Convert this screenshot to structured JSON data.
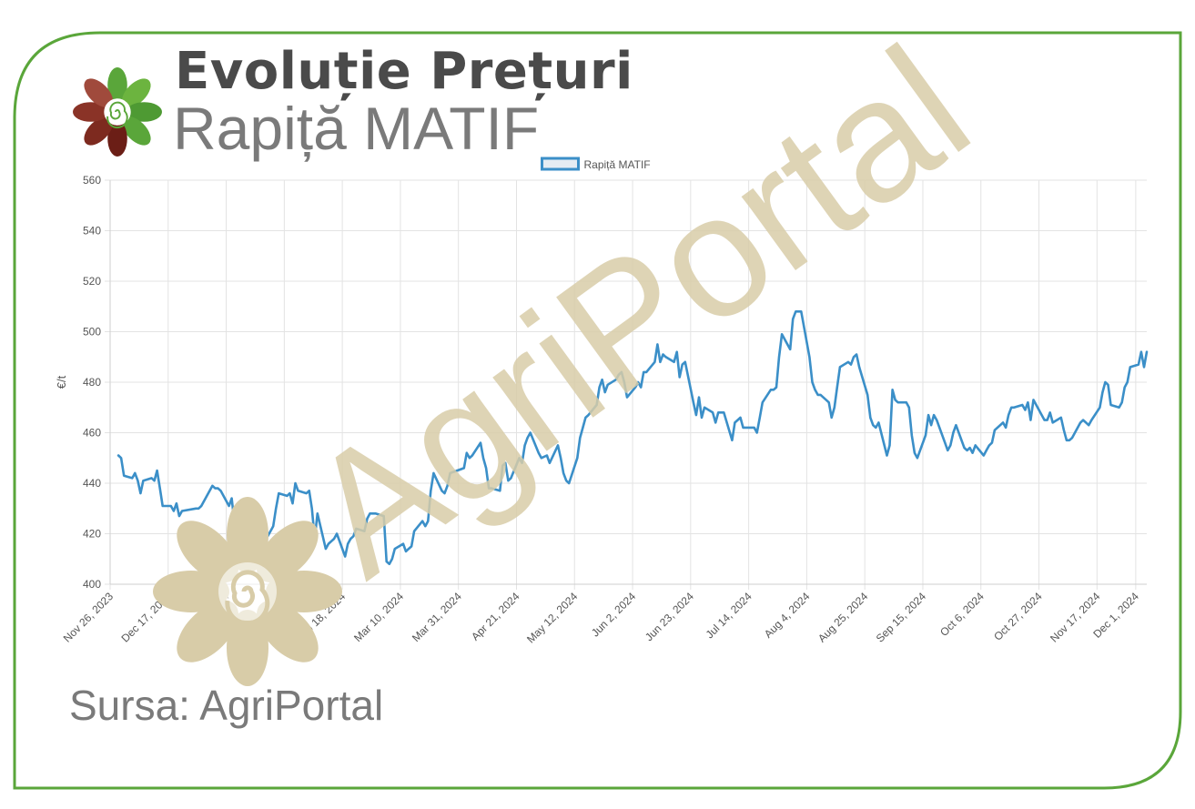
{
  "header": {
    "title_line1": "Evoluție Prețuri",
    "title_line2": "Rapiță MATIF"
  },
  "footer": {
    "source": "Sursa: AgriPortal"
  },
  "watermark": {
    "text": "AgriPortal",
    "color": "#d8cca8"
  },
  "colors": {
    "frame": "#5aa63a",
    "line": "#3b8fc8",
    "logo_green": "#5aa63a",
    "logo_red": "#8a3327"
  },
  "chart_data": {
    "type": "line",
    "legend": "Rapiță MATIF",
    "legend_position": "top-center",
    "ylabel": "€/t",
    "ylim": [
      400,
      560
    ],
    "yticks": [
      400,
      420,
      440,
      460,
      480,
      500,
      520,
      540,
      560
    ],
    "xlim": [
      "2023-11-26",
      "2024-12-05"
    ],
    "xticks": [
      "Nov 26, 2023",
      "Dec 17, 2023",
      "Jan 7, 2024",
      "Jan 28, 2024",
      "Feb 18, 2024",
      "Mar 10, 2024",
      "Mar 31, 2024",
      "Apr 21, 2024",
      "May 12, 2024",
      "Jun 2, 2024",
      "Jun 23, 2024",
      "Jul 14, 2024",
      "Aug 4, 2024",
      "Aug 25, 2024",
      "Sep 15, 2024",
      "Oct 6, 2024",
      "Oct 27, 2024",
      "Nov 17, 2024",
      "Dec 1, 2024"
    ],
    "grid": true,
    "series": [
      {
        "name": "Rapiță MATIF",
        "color": "#3b8fc8",
        "points": [
          [
            "2023-11-29",
            451
          ],
          [
            "2023-11-30",
            450
          ],
          [
            "2023-12-01",
            443
          ],
          [
            "2023-12-04",
            442
          ],
          [
            "2023-12-05",
            444
          ],
          [
            "2023-12-06",
            441
          ],
          [
            "2023-12-07",
            436
          ],
          [
            "2023-12-08",
            441
          ],
          [
            "2023-12-11",
            442
          ],
          [
            "2023-12-12",
            441
          ],
          [
            "2023-12-13",
            445
          ],
          [
            "2023-12-14",
            438
          ],
          [
            "2023-12-15",
            431
          ],
          [
            "2023-12-18",
            431
          ],
          [
            "2023-12-19",
            429
          ],
          [
            "2023-12-20",
            432
          ],
          [
            "2023-12-21",
            427
          ],
          [
            "2023-12-22",
            429
          ],
          [
            "2023-12-27",
            430
          ],
          [
            "2023-12-28",
            430
          ],
          [
            "2023-12-29",
            431
          ],
          [
            "2024-01-02",
            439
          ],
          [
            "2024-01-03",
            438
          ],
          [
            "2024-01-04",
            438
          ],
          [
            "2024-01-05",
            437
          ],
          [
            "2024-01-08",
            431
          ],
          [
            "2024-01-09",
            434
          ],
          [
            "2024-01-10",
            424
          ],
          [
            "2024-01-11",
            427
          ],
          [
            "2024-01-12",
            423
          ],
          [
            "2024-01-15",
            419
          ],
          [
            "2024-01-16",
            423
          ],
          [
            "2024-01-17",
            426
          ],
          [
            "2024-01-18",
            425
          ],
          [
            "2024-01-19",
            420
          ],
          [
            "2024-01-22",
            419
          ],
          [
            "2024-01-23",
            421
          ],
          [
            "2024-01-24",
            423
          ],
          [
            "2024-01-25",
            430
          ],
          [
            "2024-01-26",
            436
          ],
          [
            "2024-01-29",
            435
          ],
          [
            "2024-01-30",
            436
          ],
          [
            "2024-01-31",
            432
          ],
          [
            "2024-02-01",
            440
          ],
          [
            "2024-02-02",
            437
          ],
          [
            "2024-02-05",
            436
          ],
          [
            "2024-02-06",
            437
          ],
          [
            "2024-02-07",
            430
          ],
          [
            "2024-02-08",
            418
          ],
          [
            "2024-02-09",
            428
          ],
          [
            "2024-02-12",
            414
          ],
          [
            "2024-02-13",
            416
          ],
          [
            "2024-02-14",
            417
          ],
          [
            "2024-02-15",
            418
          ],
          [
            "2024-02-16",
            420
          ],
          [
            "2024-02-19",
            411
          ],
          [
            "2024-02-20",
            416
          ],
          [
            "2024-02-21",
            418
          ],
          [
            "2024-02-22",
            419
          ],
          [
            "2024-02-23",
            422
          ],
          [
            "2024-02-26",
            421
          ],
          [
            "2024-02-27",
            426
          ],
          [
            "2024-02-28",
            428
          ],
          [
            "2024-02-29",
            428
          ],
          [
            "2024-03-01",
            428
          ],
          [
            "2024-03-04",
            427
          ],
          [
            "2024-03-05",
            409
          ],
          [
            "2024-03-06",
            408
          ],
          [
            "2024-03-07",
            410
          ],
          [
            "2024-03-08",
            414
          ],
          [
            "2024-03-11",
            416
          ],
          [
            "2024-03-12",
            413
          ],
          [
            "2024-03-13",
            414
          ],
          [
            "2024-03-14",
            415
          ],
          [
            "2024-03-15",
            421
          ],
          [
            "2024-03-18",
            425
          ],
          [
            "2024-03-19",
            423
          ],
          [
            "2024-03-20",
            425
          ],
          [
            "2024-03-21",
            437
          ],
          [
            "2024-03-22",
            444
          ],
          [
            "2024-03-25",
            437
          ],
          [
            "2024-03-26",
            436
          ],
          [
            "2024-03-27",
            439
          ],
          [
            "2024-03-28",
            444
          ],
          [
            "2024-04-02",
            446
          ],
          [
            "2024-04-03",
            452
          ],
          [
            "2024-04-04",
            450
          ],
          [
            "2024-04-05",
            451
          ],
          [
            "2024-04-08",
            456
          ],
          [
            "2024-04-09",
            450
          ],
          [
            "2024-04-10",
            446
          ],
          [
            "2024-04-11",
            438
          ],
          [
            "2024-04-12",
            438
          ],
          [
            "2024-04-15",
            437
          ],
          [
            "2024-04-16",
            447
          ],
          [
            "2024-04-17",
            448
          ],
          [
            "2024-04-18",
            441
          ],
          [
            "2024-04-19",
            442
          ],
          [
            "2024-04-22",
            450
          ],
          [
            "2024-04-23",
            448
          ],
          [
            "2024-04-24",
            455
          ],
          [
            "2024-04-25",
            458
          ],
          [
            "2024-04-26",
            460
          ],
          [
            "2024-04-29",
            452
          ],
          [
            "2024-04-30",
            450
          ],
          [
            "2024-05-02",
            451
          ],
          [
            "2024-05-03",
            448
          ],
          [
            "2024-05-06",
            455
          ],
          [
            "2024-05-07",
            450
          ],
          [
            "2024-05-08",
            444
          ],
          [
            "2024-05-09",
            441
          ],
          [
            "2024-05-10",
            440
          ],
          [
            "2024-05-13",
            450
          ],
          [
            "2024-05-14",
            458
          ],
          [
            "2024-05-15",
            462
          ],
          [
            "2024-05-16",
            466
          ],
          [
            "2024-05-17",
            467
          ],
          [
            "2024-05-20",
            471
          ],
          [
            "2024-05-21",
            478
          ],
          [
            "2024-05-22",
            481
          ],
          [
            "2024-05-23",
            476
          ],
          [
            "2024-05-24",
            479
          ],
          [
            "2024-05-27",
            481
          ],
          [
            "2024-05-28",
            483
          ],
          [
            "2024-05-29",
            484
          ],
          [
            "2024-05-30",
            480
          ],
          [
            "2024-05-31",
            474
          ],
          [
            "2024-06-03",
            478
          ],
          [
            "2024-06-04",
            480
          ],
          [
            "2024-06-05",
            478
          ],
          [
            "2024-06-06",
            484
          ],
          [
            "2024-06-07",
            484
          ],
          [
            "2024-06-10",
            488
          ],
          [
            "2024-06-11",
            495
          ],
          [
            "2024-06-12",
            488
          ],
          [
            "2024-06-13",
            491
          ],
          [
            "2024-06-14",
            490
          ],
          [
            "2024-06-17",
            488
          ],
          [
            "2024-06-18",
            492
          ],
          [
            "2024-06-19",
            482
          ],
          [
            "2024-06-20",
            487
          ],
          [
            "2024-06-21",
            488
          ],
          [
            "2024-06-24",
            472
          ],
          [
            "2024-06-25",
            467
          ],
          [
            "2024-06-26",
            474
          ],
          [
            "2024-06-27",
            466
          ],
          [
            "2024-06-28",
            470
          ],
          [
            "2024-07-01",
            468
          ],
          [
            "2024-07-02",
            464
          ],
          [
            "2024-07-03",
            468
          ],
          [
            "2024-07-04",
            468
          ],
          [
            "2024-07-05",
            468
          ],
          [
            "2024-07-08",
            457
          ],
          [
            "2024-07-09",
            464
          ],
          [
            "2024-07-10",
            465
          ],
          [
            "2024-07-11",
            466
          ],
          [
            "2024-07-12",
            462
          ],
          [
            "2024-07-15",
            462
          ],
          [
            "2024-07-16",
            462
          ],
          [
            "2024-07-17",
            460
          ],
          [
            "2024-07-18",
            466
          ],
          [
            "2024-07-19",
            472
          ],
          [
            "2024-07-22",
            477
          ],
          [
            "2024-07-23",
            477
          ],
          [
            "2024-07-24",
            478
          ],
          [
            "2024-07-25",
            490
          ],
          [
            "2024-07-26",
            499
          ],
          [
            "2024-07-29",
            493
          ],
          [
            "2024-07-30",
            505
          ],
          [
            "2024-07-31",
            508
          ],
          [
            "2024-08-01",
            508
          ],
          [
            "2024-08-02",
            508
          ],
          [
            "2024-08-05",
            490
          ],
          [
            "2024-08-06",
            480
          ],
          [
            "2024-08-07",
            477
          ],
          [
            "2024-08-08",
            475
          ],
          [
            "2024-08-09",
            475
          ],
          [
            "2024-08-12",
            472
          ],
          [
            "2024-08-13",
            466
          ],
          [
            "2024-08-14",
            470
          ],
          [
            "2024-08-15",
            478
          ],
          [
            "2024-08-16",
            486
          ],
          [
            "2024-08-19",
            488
          ],
          [
            "2024-08-20",
            487
          ],
          [
            "2024-08-21",
            490
          ],
          [
            "2024-08-22",
            491
          ],
          [
            "2024-08-23",
            486
          ],
          [
            "2024-08-26",
            475
          ],
          [
            "2024-08-27",
            466
          ],
          [
            "2024-08-28",
            463
          ],
          [
            "2024-08-29",
            462
          ],
          [
            "2024-08-30",
            464
          ],
          [
            "2024-09-02",
            451
          ],
          [
            "2024-09-03",
            455
          ],
          [
            "2024-09-04",
            477
          ],
          [
            "2024-09-05",
            473
          ],
          [
            "2024-09-06",
            472
          ],
          [
            "2024-09-09",
            472
          ],
          [
            "2024-09-10",
            470
          ],
          [
            "2024-09-11",
            459
          ],
          [
            "2024-09-12",
            452
          ],
          [
            "2024-09-13",
            450
          ],
          [
            "2024-09-16",
            459
          ],
          [
            "2024-09-17",
            467
          ],
          [
            "2024-09-18",
            463
          ],
          [
            "2024-09-19",
            467
          ],
          [
            "2024-09-20",
            465
          ],
          [
            "2024-09-23",
            456
          ],
          [
            "2024-09-24",
            453
          ],
          [
            "2024-09-25",
            455
          ],
          [
            "2024-09-26",
            460
          ],
          [
            "2024-09-27",
            463
          ],
          [
            "2024-09-30",
            454
          ],
          [
            "2024-10-01",
            453
          ],
          [
            "2024-10-02",
            454
          ],
          [
            "2024-10-03",
            452
          ],
          [
            "2024-10-04",
            455
          ],
          [
            "2024-10-07",
            451
          ],
          [
            "2024-10-08",
            453
          ],
          [
            "2024-10-09",
            455
          ],
          [
            "2024-10-10",
            456
          ],
          [
            "2024-10-11",
            461
          ],
          [
            "2024-10-14",
            464
          ],
          [
            "2024-10-15",
            462
          ],
          [
            "2024-10-16",
            467
          ],
          [
            "2024-10-17",
            470
          ],
          [
            "2024-10-18",
            470
          ],
          [
            "2024-10-21",
            471
          ],
          [
            "2024-10-22",
            469
          ],
          [
            "2024-10-23",
            472
          ],
          [
            "2024-10-24",
            465
          ],
          [
            "2024-10-25",
            473
          ],
          [
            "2024-10-28",
            467
          ],
          [
            "2024-10-29",
            465
          ],
          [
            "2024-10-30",
            465
          ],
          [
            "2024-10-31",
            468
          ],
          [
            "2024-11-01",
            464
          ],
          [
            "2024-11-04",
            466
          ],
          [
            "2024-11-05",
            461
          ],
          [
            "2024-11-06",
            457
          ],
          [
            "2024-11-07",
            457
          ],
          [
            "2024-11-08",
            458
          ],
          [
            "2024-11-11",
            464
          ],
          [
            "2024-11-12",
            465
          ],
          [
            "2024-11-13",
            464
          ],
          [
            "2024-11-14",
            463
          ],
          [
            "2024-11-15",
            465
          ],
          [
            "2024-11-18",
            470
          ],
          [
            "2024-11-19",
            476
          ],
          [
            "2024-11-20",
            480
          ],
          [
            "2024-11-21",
            479
          ],
          [
            "2024-11-22",
            471
          ],
          [
            "2024-11-25",
            470
          ],
          [
            "2024-11-26",
            472
          ],
          [
            "2024-11-27",
            478
          ],
          [
            "2024-11-28",
            480
          ],
          [
            "2024-11-29",
            486
          ],
          [
            "2024-12-02",
            487
          ],
          [
            "2024-12-03",
            492
          ],
          [
            "2024-12-04",
            486
          ],
          [
            "2024-12-05",
            492
          ]
        ]
      }
    ]
  }
}
